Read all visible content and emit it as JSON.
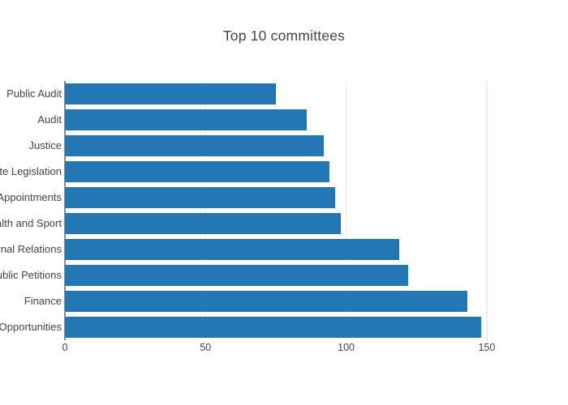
{
  "title": "Top 10 committees",
  "colors": {
    "bar": "#2277b4",
    "grid": "#ececec",
    "zeroline": "#8c8c8c",
    "text": "#444444",
    "background": "#ffffff"
  },
  "chart_data": {
    "type": "bar",
    "orientation": "horizontal",
    "title": "Top 10 committees",
    "categories": [
      "Public Audit",
      "Audit",
      "Justice",
      "ate Legislation",
      "Appointments",
      "alth and Sport",
      "rnal Relations",
      "ublic Petitions",
      "Finance",
      "Opportunities"
    ],
    "values": [
      75,
      86,
      92,
      94,
      96,
      98,
      119,
      122,
      143,
      148
    ],
    "xlabel": "",
    "ylabel": "",
    "x_ticks": [
      0,
      50,
      100,
      150
    ],
    "x_tick_labels": [
      "0",
      "50",
      "100",
      "150"
    ],
    "xlim": [
      0,
      155.8
    ],
    "grid": true,
    "legend": false
  }
}
